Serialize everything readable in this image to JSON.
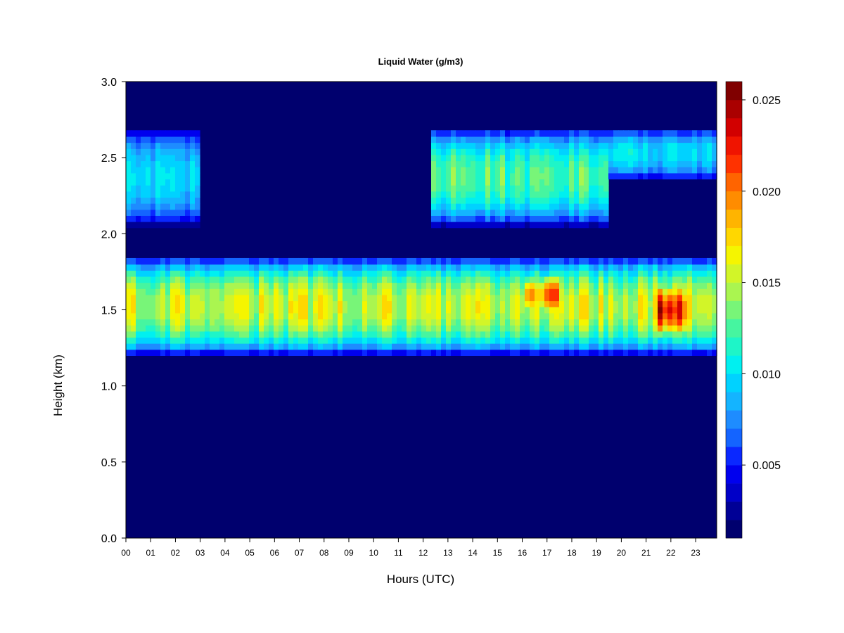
{
  "chart_data": {
    "type": "heatmap",
    "title": "Liquid Water (g/m3)",
    "xlabel": "Hours (UTC)",
    "ylabel": "Height (km)",
    "x_ticks": [
      "00",
      "01",
      "02",
      "03",
      "04",
      "05",
      "06",
      "07",
      "08",
      "09",
      "10",
      "11",
      "12",
      "13",
      "14",
      "15",
      "16",
      "17",
      "18",
      "19",
      "20",
      "21",
      "22",
      "23"
    ],
    "x_range": [
      0,
      23.85
    ],
    "y_ticks": [
      "0.0",
      "0.5",
      "1.0",
      "1.5",
      "2.0",
      "2.5",
      "3.0"
    ],
    "y_range": [
      0,
      3.0
    ],
    "colorbar": {
      "range": [
        0.001,
        0.026
      ],
      "levels": 25,
      "tick_values": [
        0.005,
        0.01,
        0.015,
        0.02,
        0.025
      ],
      "tick_labels": [
        "0.005",
        "0.010",
        "0.015",
        "0.020",
        "0.025"
      ],
      "colors": [
        "#00006e",
        "#000096",
        "#0000c8",
        "#0000ee",
        "#0a28ff",
        "#1464ff",
        "#1e8cff",
        "#14b4ff",
        "#00d2ff",
        "#00f0f0",
        "#1ef5c8",
        "#46f5a0",
        "#78f578",
        "#aaf550",
        "#d2f528",
        "#f5f500",
        "#ffd700",
        "#ffb400",
        "#ff8c00",
        "#ff6400",
        "#ff3200",
        "#f01400",
        "#d20000",
        "#aa0000",
        "#800000"
      ]
    },
    "layers": [
      {
        "name": "lower cloud layer",
        "hours": [
          0,
          23.85
        ],
        "height_km": [
          1.2,
          1.85
        ],
        "peak_value": 0.016
      },
      {
        "name": "lower cloud layer maximum",
        "hours": [
          16,
          17.5
        ],
        "height_km": [
          1.45,
          1.75
        ],
        "peak_value": 0.021
      },
      {
        "name": "lower cloud layer maximum",
        "hours": [
          21.5,
          22.7
        ],
        "height_km": [
          1.3,
          1.7
        ],
        "peak_value": 0.024
      },
      {
        "name": "upper cloud layer",
        "hours": [
          0,
          3
        ],
        "height_km": [
          2.05,
          2.7
        ],
        "peak_value": 0.01
      },
      {
        "name": "upper cloud layer",
        "hours": [
          12.3,
          19.4
        ],
        "height_km": [
          2.05,
          2.7
        ],
        "peak_value": 0.013
      },
      {
        "name": "upper cloud layer",
        "hours": [
          19.4,
          23.85
        ],
        "height_km": [
          2.35,
          2.7
        ],
        "peak_value": 0.01
      }
    ]
  }
}
